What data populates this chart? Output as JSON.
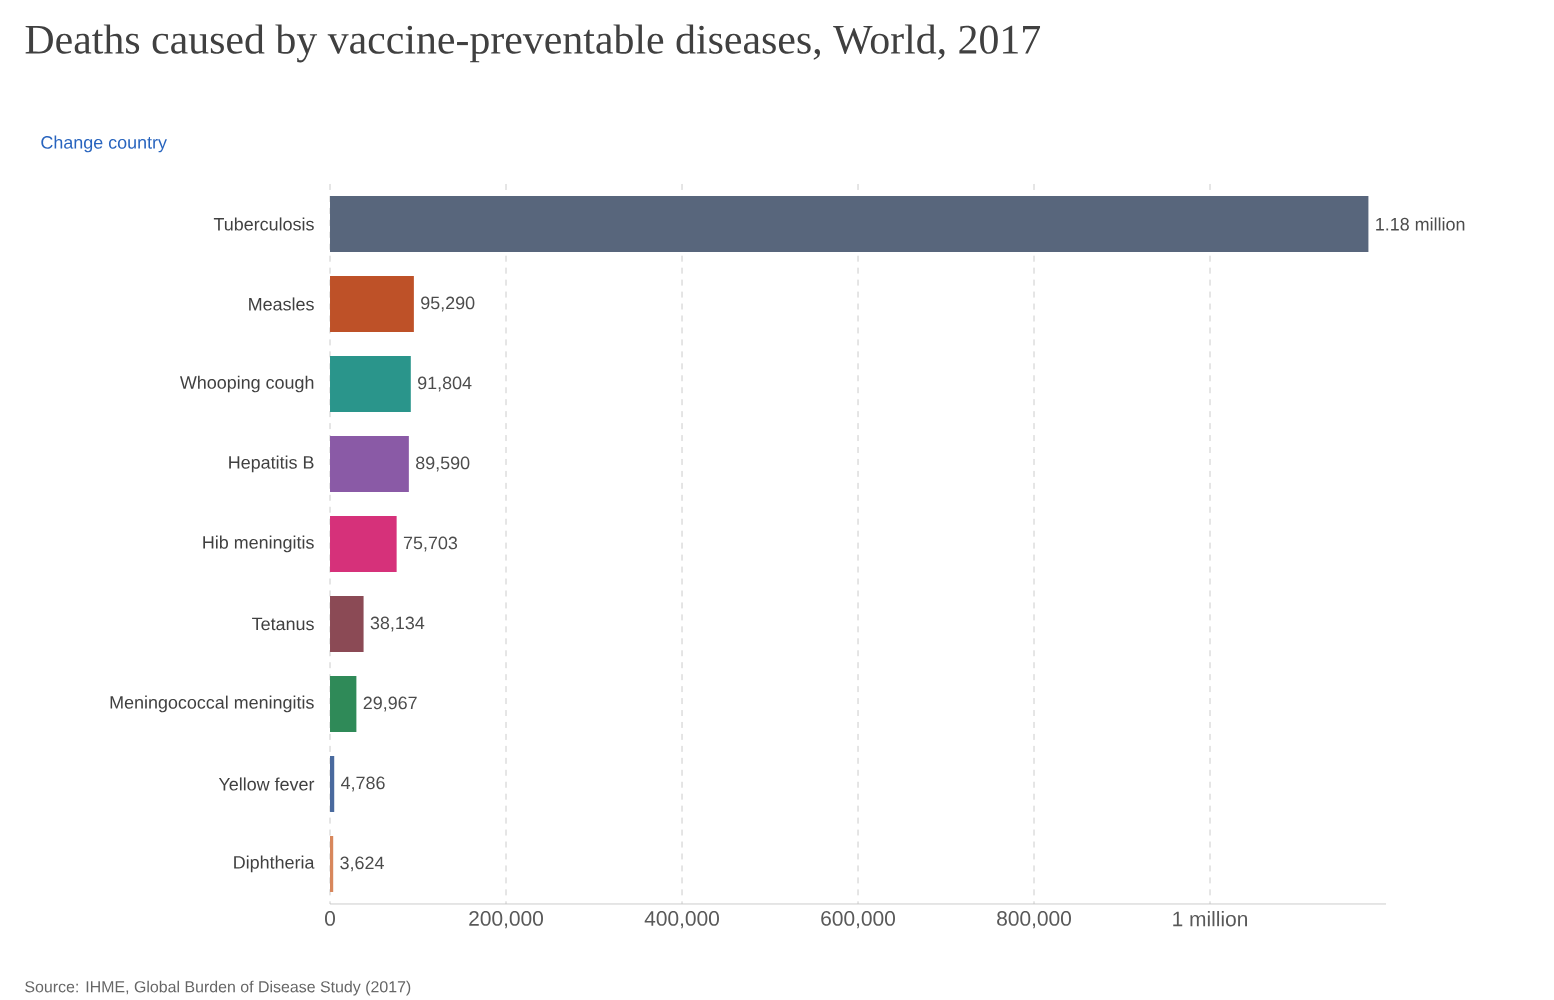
{
  "chart_data": {
    "type": "bar",
    "orientation": "horizontal",
    "title": "Deaths caused by vaccine-preventable diseases, World, 2017",
    "categories": [
      "Tuberculosis",
      "Measles",
      "Whooping cough",
      "Hepatitis B",
      "Hib meningitis",
      "Tetanus",
      "Meningococcal meningitis",
      "Yellow fever",
      "Diphtheria"
    ],
    "values": [
      1180000,
      95290,
      91804,
      89590,
      75703,
      38134,
      29967,
      4786,
      3624
    ],
    "value_labels": [
      "1.18 million",
      "95,290",
      "91,804",
      "89,590",
      "75,703",
      "38,134",
      "29,967",
      "4,786",
      "3,624"
    ],
    "colors": [
      "#58667c",
      "#be5128",
      "#2a958b",
      "#8a5aa6",
      "#d6317a",
      "#8b4a55",
      "#2f8a58",
      "#4a6a9e",
      "#d8875c"
    ],
    "xlim": [
      0,
      1200000
    ],
    "xticks": [
      0,
      {
        "value": 200000,
        "label": "200,000"
      },
      {
        "value": 400000,
        "label": "400,000"
      },
      {
        "value": 600000,
        "label": "600,000"
      },
      {
        "value": 800000,
        "label": "800,000"
      },
      {
        "value": 1000000,
        "label": "1 million"
      }
    ],
    "grid": "x",
    "annotations": [
      "Change country",
      "Source: IHME, Global Burden of Disease Study (2017)"
    ]
  }
}
